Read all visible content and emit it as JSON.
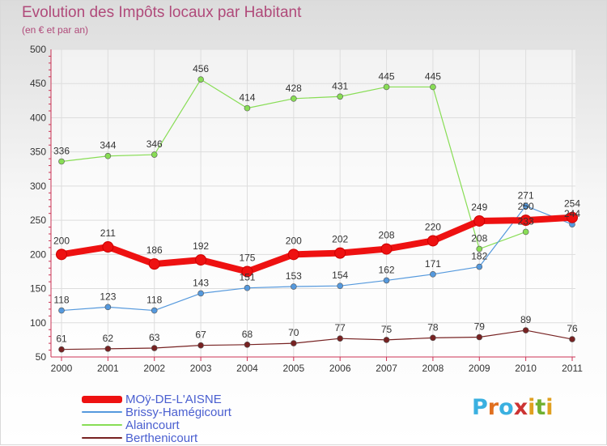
{
  "title": "Evolution des Impôts locaux par Habitant",
  "subtitle": "(en € et par an)",
  "logo": {
    "text": "Proxiti",
    "colors": [
      "#3ab0e0",
      "#e07020",
      "#3ab0e0",
      "#cc3333",
      "#e0a020",
      "#70b030",
      "#e0a020"
    ]
  },
  "chart_data": {
    "type": "line",
    "x": [
      "2000",
      "2001",
      "2002",
      "2003",
      "2004",
      "2005",
      "2006",
      "2007",
      "2008",
      "2009",
      "2010",
      "2011"
    ],
    "ylim": [
      50,
      500
    ],
    "yticks": [
      "50",
      "100",
      "150",
      "200",
      "250",
      "300",
      "350",
      "400",
      "450",
      "500"
    ],
    "grid": true,
    "legend_position": "bottom-left",
    "series": [
      {
        "name": "MOÿ-DE-L'AISNE",
        "color": "#ee1111",
        "width": 8,
        "values": [
          200,
          211,
          186,
          192,
          175,
          200,
          202,
          208,
          220,
          249,
          250,
          254
        ],
        "labels": [
          "200",
          "211",
          "186",
          "192",
          "175",
          "200",
          "202",
          "208",
          "220",
          "249",
          "250",
          "254"
        ]
      },
      {
        "name": "Brissy-Hamégicourt",
        "color": "#5599dd",
        "width": 1.2,
        "values": [
          118,
          123,
          118,
          143,
          151,
          153,
          154,
          162,
          171,
          182,
          271,
          244
        ],
        "labels": [
          "118",
          "123",
          "118",
          "143",
          "151",
          "153",
          "154",
          "162",
          "171",
          "182",
          "271",
          "244"
        ]
      },
      {
        "name": "Alaincourt",
        "color": "#88dd55",
        "width": 1.2,
        "values": [
          336,
          344,
          346,
          456,
          414,
          428,
          431,
          445,
          445,
          208,
          233,
          null
        ],
        "labels": [
          "336",
          "344",
          "346",
          "456",
          "414",
          "428",
          "431",
          "445",
          "445",
          "208",
          "233",
          ""
        ]
      },
      {
        "name": "Berthenicourt",
        "color": "#772222",
        "width": 1.2,
        "values": [
          61,
          62,
          63,
          67,
          68,
          70,
          77,
          75,
          78,
          79,
          89,
          76
        ],
        "labels": [
          "61",
          "62",
          "63",
          "67",
          "68",
          "70",
          "77",
          "75",
          "78",
          "79",
          "89",
          "76"
        ]
      }
    ]
  }
}
